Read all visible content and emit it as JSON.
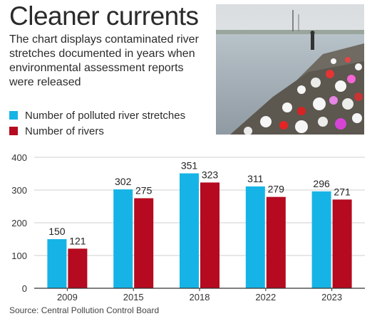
{
  "title": "Cleaner currents",
  "subtitle": "The chart displays contaminated river stretches documented in years when environmental assessment reports were released",
  "source": "Source: Central Pollution Control Board",
  "colors": {
    "series1": "#16b4e6",
    "series2": "#b50a1f",
    "axis": "#333333",
    "grid": "#cfcfcf"
  },
  "photo": {
    "subject": "river-bank-garbage"
  },
  "chart_data": {
    "type": "bar",
    "categories": [
      "2009",
      "2015",
      "2018",
      "2022",
      "2023"
    ],
    "series": [
      {
        "name": "Number of polluted river stretches",
        "values": [
          150,
          302,
          351,
          311,
          296
        ]
      },
      {
        "name": "Number of rivers",
        "values": [
          121,
          275,
          323,
          279,
          271
        ]
      }
    ],
    "yticks": [
      0,
      100,
      200,
      300,
      400
    ],
    "ylim": [
      0,
      400
    ],
    "grid": true,
    "data_labels": true,
    "legend": "top-left"
  }
}
